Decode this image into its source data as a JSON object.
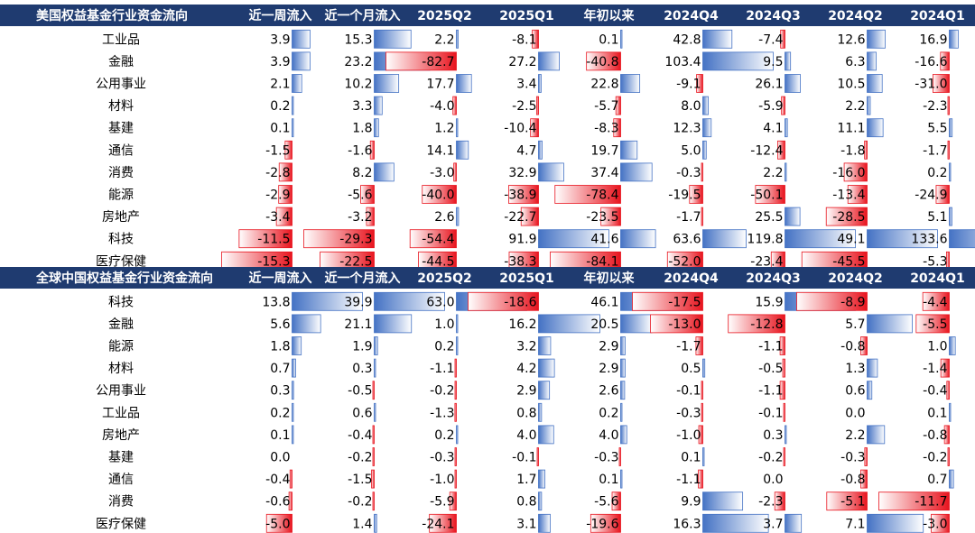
{
  "colors": {
    "header_bg": "#1f3b70",
    "header_text": "#ffffff",
    "positive": "#4472c4",
    "negative": "#e8141e"
  },
  "chart_data": [
    {
      "type": "table",
      "title": "美国权益基金行业资金流向",
      "columns": [
        "近一周流入",
        "近一个月流入",
        "2025Q2",
        "2025Q1",
        "年初以来",
        "2024Q4",
        "2024Q3",
        "2024Q2",
        "2024Q1"
      ],
      "rows": [
        {
          "label": "工业品",
          "values": [
            3.9,
            15.3,
            2.2,
            -8.1,
            0.1,
            42.8,
            -7.4,
            12.6,
            16.9
          ]
        },
        {
          "label": "金融",
          "values": [
            3.9,
            23.2,
            -82.7,
            27.2,
            -40.8,
            103.4,
            9.5,
            6.3,
            -16.6
          ]
        },
        {
          "label": "公用事业",
          "values": [
            2.1,
            10.2,
            17.7,
            3.4,
            22.8,
            -9.1,
            26.1,
            10.5,
            -31.0
          ]
        },
        {
          "label": "材料",
          "values": [
            0.2,
            3.3,
            -4.0,
            -2.5,
            -5.7,
            8.0,
            -5.9,
            2.2,
            -2.3
          ]
        },
        {
          "label": "基建",
          "values": [
            0.1,
            1.8,
            1.2,
            -10.4,
            -8.3,
            12.3,
            4.1,
            11.1,
            5.5
          ]
        },
        {
          "label": "通信",
          "values": [
            -1.5,
            -1.6,
            14.1,
            4.7,
            19.7,
            5.0,
            -12.4,
            -1.8,
            -1.7
          ]
        },
        {
          "label": "消费",
          "values": [
            -2.8,
            8.2,
            -3.0,
            32.9,
            37.4,
            -0.3,
            2.2,
            -16.0,
            0.2
          ]
        },
        {
          "label": "能源",
          "values": [
            -2.9,
            -5.6,
            -40.0,
            -38.9,
            -78.4,
            -19.5,
            -50.1,
            -13.4,
            -24.9
          ]
        },
        {
          "label": "房地产",
          "values": [
            -3.4,
            -3.2,
            2.6,
            -22.7,
            -23.5,
            -1.7,
            25.5,
            -28.5,
            5.1
          ]
        },
        {
          "label": "科技",
          "values": [
            -11.5,
            -29.3,
            -54.4,
            91.9,
            41.6,
            63.6,
            119.8,
            49.1,
            133.6
          ]
        },
        {
          "label": "医疗保健",
          "values": [
            -15.3,
            -22.5,
            -44.5,
            -38.3,
            -84.1,
            -52.0,
            -23.4,
            -45.5,
            -5.3
          ]
        }
      ]
    },
    {
      "type": "table",
      "title": "全球中国权益基金行业资金流向",
      "columns": [
        "近一周流入",
        "近一个月流入",
        "2025Q2",
        "2025Q1",
        "年初以来",
        "2024Q4",
        "2024Q3",
        "2024Q2",
        "2024Q1"
      ],
      "rows": [
        {
          "label": "科技",
          "values": [
            13.8,
            39.9,
            63.0,
            -18.6,
            46.1,
            -17.5,
            15.9,
            -8.9,
            -4.4
          ]
        },
        {
          "label": "金融",
          "values": [
            5.6,
            21.1,
            1.0,
            16.2,
            20.5,
            -13.0,
            -12.8,
            5.7,
            -5.5
          ]
        },
        {
          "label": "能源",
          "values": [
            1.8,
            1.9,
            0.2,
            3.2,
            2.9,
            -1.7,
            -1.1,
            -0.8,
            1.0
          ]
        },
        {
          "label": "材料",
          "values": [
            0.7,
            0.3,
            -1.1,
            4.2,
            2.9,
            0.5,
            -0.5,
            1.3,
            -1.4
          ]
        },
        {
          "label": "公用事业",
          "values": [
            0.3,
            -0.5,
            -0.2,
            2.9,
            2.6,
            -0.1,
            -1.1,
            0.6,
            -0.4
          ]
        },
        {
          "label": "工业品",
          "values": [
            0.2,
            0.6,
            -1.3,
            0.8,
            0.2,
            -0.3,
            -0.1,
            0.0,
            0.1
          ]
        },
        {
          "label": "房地产",
          "values": [
            0.1,
            -0.4,
            0.2,
            4.0,
            4.0,
            -1.0,
            0.3,
            2.2,
            -0.8
          ]
        },
        {
          "label": "基建",
          "values": [
            0.0,
            -0.2,
            -0.3,
            -0.1,
            -0.3,
            0.1,
            -0.2,
            -0.3,
            -0.2
          ]
        },
        {
          "label": "通信",
          "values": [
            -0.4,
            -1.5,
            -1.0,
            1.7,
            0.1,
            -1.1,
            0.0,
            -0.8,
            0.7
          ]
        },
        {
          "label": "消费",
          "values": [
            -0.6,
            -0.2,
            -5.9,
            0.8,
            -5.6,
            9.9,
            -2.3,
            -5.1,
            -11.7
          ]
        },
        {
          "label": "医疗保健",
          "values": [
            -5.0,
            1.4,
            -24.1,
            3.1,
            -19.6,
            16.3,
            3.7,
            7.1,
            -3.0
          ]
        }
      ]
    }
  ]
}
